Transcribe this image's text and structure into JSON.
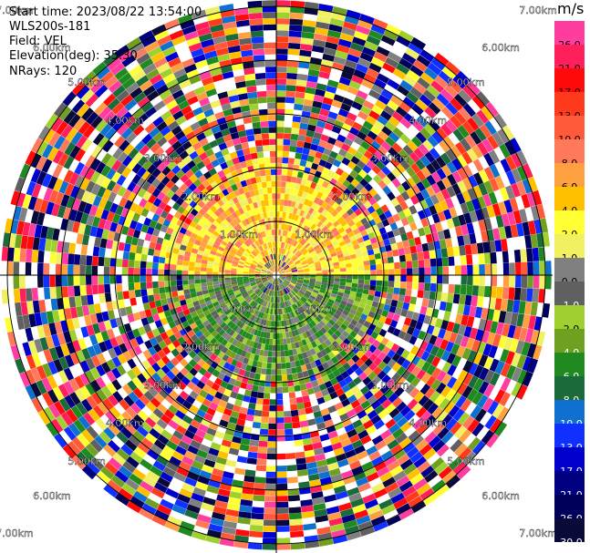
{
  "header": {
    "start_time": "Start time: 2023/08/22 13:54:00",
    "instrument": "WLS200s-181",
    "field": "Field: VEL",
    "elevation": "Elevation(deg): 35.30",
    "nrays": "NRays: 120"
  },
  "colorbar": {
    "unit": "m/s",
    "labels": [
      "26.0",
      "21.0",
      "17.0",
      "13.0",
      "10.0",
      "8.0",
      "6.0",
      "4.0",
      "2.0",
      "1.0",
      "0.0",
      "-1.0",
      "-2.0",
      "-4.0",
      "-6.0",
      "-8.0",
      "-10.0",
      "-13.0",
      "-17.0",
      "-21.0",
      "-26.0",
      "-30.0"
    ],
    "colors": [
      "#ff3d9e",
      "#ff1f5a",
      "#ff0a0a",
      "#ff3a1c",
      "#ff5a3a",
      "#ff7a5a",
      "#ffa040",
      "#ffc000",
      "#ffff33",
      "#f0f060",
      "#808080",
      "#606060",
      "#a0d030",
      "#70a020",
      "#208a20",
      "#1a6a3a",
      "#1070d0",
      "#1030ff",
      "#0000cc",
      "#000080",
      "#00005a",
      "#0a0a3a"
    ],
    "text_colors": [
      "#000",
      "#000",
      "#000",
      "#000",
      "#000",
      "#000",
      "#000",
      "#000",
      "#000",
      "#000",
      "#000",
      "#fff",
      "#000",
      "#fff",
      "#fff",
      "#fff",
      "#fff",
      "#fff",
      "#fff",
      "#fff",
      "#fff",
      "#fff"
    ]
  },
  "range_rings": {
    "labels": [
      "1.00km",
      "2.00km",
      "3.00km",
      "4.00km",
      "5.00km",
      "6.00km",
      "7.00km"
    ]
  }
}
